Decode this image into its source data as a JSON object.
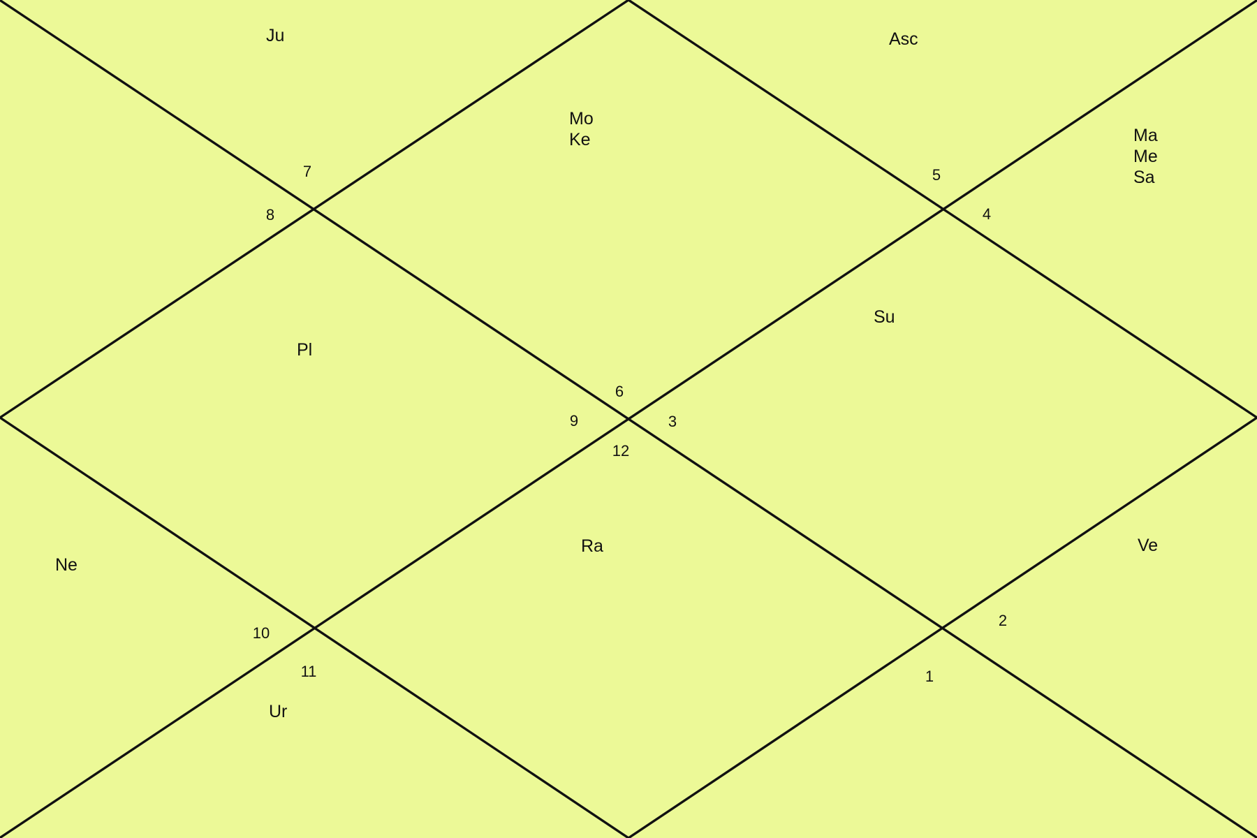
{
  "chart_data": {
    "type": "diagram",
    "houses": [
      {
        "number": "1",
        "planets": []
      },
      {
        "number": "2",
        "planets": [
          "Ve"
        ]
      },
      {
        "number": "3",
        "planets": [
          "Su"
        ]
      },
      {
        "number": "4",
        "planets": [
          "Ma",
          "Me",
          "Sa"
        ]
      },
      {
        "number": "5",
        "planets": [
          "Asc"
        ]
      },
      {
        "number": "6",
        "planets": [
          "Mo",
          "Ke"
        ]
      },
      {
        "number": "7",
        "planets": [
          "Ju"
        ]
      },
      {
        "number": "8",
        "planets": []
      },
      {
        "number": "9",
        "planets": [
          "Pl"
        ]
      },
      {
        "number": "10",
        "planets": [
          "Ne"
        ]
      },
      {
        "number": "11",
        "planets": [
          "Ur"
        ]
      },
      {
        "number": "12",
        "planets": [
          "Ra"
        ]
      }
    ]
  },
  "colors": {
    "background": "#ecf997",
    "lines": "#111111"
  }
}
